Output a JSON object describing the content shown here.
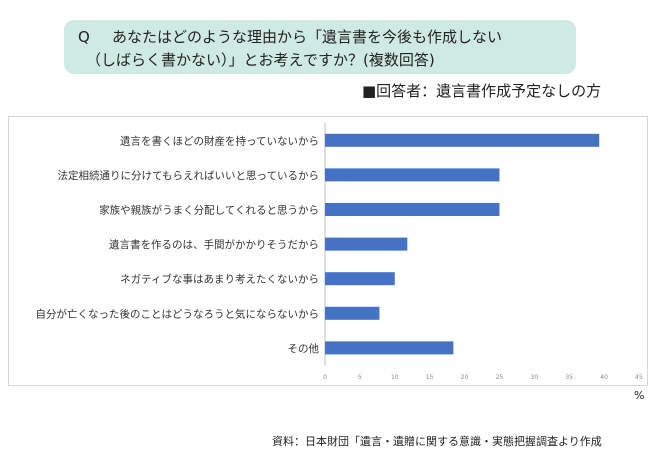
{
  "question": {
    "prefix": "Q",
    "line1": "あなたはどのような理由から「遺言書を今後も作成しない",
    "line2": "（しばらく書かない）」とお考えですか？(複数回答)"
  },
  "respondent_label": "■回答者：遺言書作成予定なしの方",
  "source_note": "資料：日本財団「遺言・遺贈に関する意識・実態把握調査より作成",
  "colors": {
    "bar": "#4472c4",
    "question_bg": "#cfeae3",
    "axis_text": "#888888"
  },
  "chart_data": {
    "type": "bar",
    "orientation": "horizontal",
    "categories": [
      "遺言を書くほどの財産を持っていないから",
      "法定相続通りに分けてもらえればいいと思っているから",
      "家族や親族がうまく分配してくれると思うから",
      "遺言書を作るのは、手間がかかりそうだから",
      "ネガティブな事はあまり考えたくないから",
      "自分が亡くなった後のことはどうなろうと気にならないから",
      "その他"
    ],
    "values": [
      39.3,
      25,
      25,
      11.8,
      10,
      7.8,
      18.4
    ],
    "x_ticks": [
      "0",
      "5",
      "10",
      "15",
      "20",
      "25",
      "30",
      "35",
      "40",
      "45"
    ],
    "xlim": [
      0,
      45
    ],
    "unit_label": "%",
    "grid": false
  }
}
